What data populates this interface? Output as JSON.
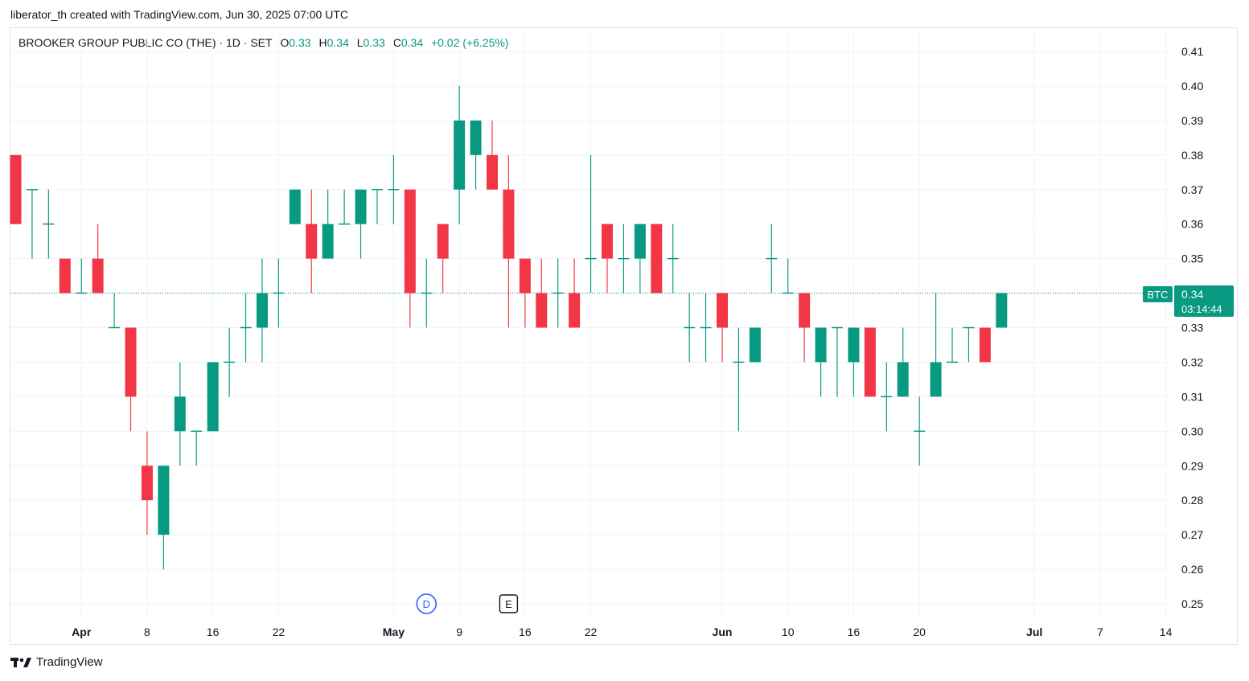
{
  "caption": "liberator_th created with TradingView.com, Jun 30, 2025 07:00 UTC",
  "legend": {
    "symbol": "BROOKER GROUP PUBLIC CO (THE) · 1D · SET",
    "open_label": "O",
    "open": "0.33",
    "high_label": "H",
    "high": "0.34",
    "low_label": "L",
    "low": "0.33",
    "close_label": "C",
    "close": "0.34",
    "change": "+0.02 (+6.25%)"
  },
  "price_tag": {
    "symbol": "BTC",
    "price": "0.34",
    "countdown": "03:14:44"
  },
  "markers": {
    "dividend": "D",
    "earnings": "E"
  },
  "footer": {
    "brand": "TradingView"
  },
  "colors": {
    "up": "#089981",
    "down": "#f23645",
    "grid": "#f0f3fa",
    "text": "#131722",
    "marker_blue": "#2962ff"
  },
  "chart_data": {
    "type": "candlestick",
    "y_ticks": [
      "0.41",
      "0.40",
      "0.39",
      "0.38",
      "0.37",
      "0.36",
      "0.35",
      "0.34",
      "0.33",
      "0.32",
      "0.31",
      "0.30",
      "0.29",
      "0.28",
      "0.27",
      "0.26",
      "0.25"
    ],
    "ylim": [
      0.25,
      0.41
    ],
    "x_ticks": [
      {
        "label": "Apr",
        "index": 4,
        "bold": true
      },
      {
        "label": "8",
        "index": 8
      },
      {
        "label": "16",
        "index": 12
      },
      {
        "label": "22",
        "index": 16
      },
      {
        "label": "May",
        "index": 23,
        "bold": true
      },
      {
        "label": "9",
        "index": 27
      },
      {
        "label": "16",
        "index": 31
      },
      {
        "label": "22",
        "index": 35
      },
      {
        "label": "Jun",
        "index": 43,
        "bold": true
      },
      {
        "label": "10",
        "index": 47
      },
      {
        "label": "16",
        "index": 51
      },
      {
        "label": "20",
        "index": 55
      },
      {
        "label": "Jul",
        "index": 62,
        "bold": true
      },
      {
        "label": "7",
        "index": 66
      },
      {
        "label": "14",
        "index": 70
      }
    ],
    "candles": [
      {
        "o": 0.38,
        "h": 0.38,
        "l": 0.36,
        "c": 0.36
      },
      {
        "o": 0.37,
        "h": 0.37,
        "l": 0.35,
        "c": 0.37
      },
      {
        "o": 0.36,
        "h": 0.37,
        "l": 0.35,
        "c": 0.36
      },
      {
        "o": 0.35,
        "h": 0.35,
        "l": 0.34,
        "c": 0.34
      },
      {
        "o": 0.34,
        "h": 0.35,
        "l": 0.34,
        "c": 0.34
      },
      {
        "o": 0.35,
        "h": 0.36,
        "l": 0.34,
        "c": 0.34
      },
      {
        "o": 0.33,
        "h": 0.34,
        "l": 0.33,
        "c": 0.33
      },
      {
        "o": 0.33,
        "h": 0.33,
        "l": 0.3,
        "c": 0.31
      },
      {
        "o": 0.29,
        "h": 0.3,
        "l": 0.27,
        "c": 0.28
      },
      {
        "o": 0.27,
        "h": 0.29,
        "l": 0.26,
        "c": 0.29
      },
      {
        "o": 0.3,
        "h": 0.32,
        "l": 0.29,
        "c": 0.31
      },
      {
        "o": 0.3,
        "h": 0.3,
        "l": 0.29,
        "c": 0.3
      },
      {
        "o": 0.3,
        "h": 0.32,
        "l": 0.3,
        "c": 0.32
      },
      {
        "o": 0.32,
        "h": 0.33,
        "l": 0.31,
        "c": 0.32
      },
      {
        "o": 0.33,
        "h": 0.34,
        "l": 0.32,
        "c": 0.33
      },
      {
        "o": 0.33,
        "h": 0.35,
        "l": 0.32,
        "c": 0.34
      },
      {
        "o": 0.34,
        "h": 0.35,
        "l": 0.33,
        "c": 0.34
      },
      {
        "o": 0.36,
        "h": 0.37,
        "l": 0.36,
        "c": 0.37
      },
      {
        "o": 0.36,
        "h": 0.37,
        "l": 0.34,
        "c": 0.35
      },
      {
        "o": 0.35,
        "h": 0.37,
        "l": 0.35,
        "c": 0.36
      },
      {
        "o": 0.36,
        "h": 0.37,
        "l": 0.36,
        "c": 0.36
      },
      {
        "o": 0.36,
        "h": 0.37,
        "l": 0.35,
        "c": 0.37
      },
      {
        "o": 0.37,
        "h": 0.37,
        "l": 0.36,
        "c": 0.37
      },
      {
        "o": 0.37,
        "h": 0.38,
        "l": 0.36,
        "c": 0.37
      },
      {
        "o": 0.37,
        "h": 0.37,
        "l": 0.33,
        "c": 0.34
      },
      {
        "o": 0.34,
        "h": 0.35,
        "l": 0.33,
        "c": 0.34
      },
      {
        "o": 0.36,
        "h": 0.36,
        "l": 0.34,
        "c": 0.35
      },
      {
        "o": 0.37,
        "h": 0.4,
        "l": 0.36,
        "c": 0.39
      },
      {
        "o": 0.38,
        "h": 0.39,
        "l": 0.37,
        "c": 0.39
      },
      {
        "o": 0.38,
        "h": 0.39,
        "l": 0.37,
        "c": 0.37
      },
      {
        "o": 0.37,
        "h": 0.38,
        "l": 0.33,
        "c": 0.35
      },
      {
        "o": 0.35,
        "h": 0.35,
        "l": 0.33,
        "c": 0.34
      },
      {
        "o": 0.34,
        "h": 0.35,
        "l": 0.33,
        "c": 0.33
      },
      {
        "o": 0.34,
        "h": 0.35,
        "l": 0.33,
        "c": 0.34
      },
      {
        "o": 0.34,
        "h": 0.35,
        "l": 0.33,
        "c": 0.33
      },
      {
        "o": 0.35,
        "h": 0.38,
        "l": 0.34,
        "c": 0.35
      },
      {
        "o": 0.36,
        "h": 0.36,
        "l": 0.34,
        "c": 0.35
      },
      {
        "o": 0.35,
        "h": 0.36,
        "l": 0.34,
        "c": 0.35
      },
      {
        "o": 0.35,
        "h": 0.36,
        "l": 0.34,
        "c": 0.36
      },
      {
        "o": 0.36,
        "h": 0.36,
        "l": 0.34,
        "c": 0.34
      },
      {
        "o": 0.35,
        "h": 0.36,
        "l": 0.34,
        "c": 0.35
      },
      {
        "o": 0.33,
        "h": 0.34,
        "l": 0.32,
        "c": 0.33
      },
      {
        "o": 0.33,
        "h": 0.34,
        "l": 0.32,
        "c": 0.33
      },
      {
        "o": 0.34,
        "h": 0.34,
        "l": 0.32,
        "c": 0.33
      },
      {
        "o": 0.32,
        "h": 0.33,
        "l": 0.3,
        "c": 0.32
      },
      {
        "o": 0.32,
        "h": 0.33,
        "l": 0.32,
        "c": 0.33
      },
      {
        "o": 0.35,
        "h": 0.36,
        "l": 0.34,
        "c": 0.35
      },
      {
        "o": 0.34,
        "h": 0.35,
        "l": 0.34,
        "c": 0.34
      },
      {
        "o": 0.34,
        "h": 0.34,
        "l": 0.32,
        "c": 0.33
      },
      {
        "o": 0.32,
        "h": 0.33,
        "l": 0.31,
        "c": 0.33
      },
      {
        "o": 0.33,
        "h": 0.33,
        "l": 0.31,
        "c": 0.33
      },
      {
        "o": 0.32,
        "h": 0.33,
        "l": 0.31,
        "c": 0.33
      },
      {
        "o": 0.33,
        "h": 0.33,
        "l": 0.31,
        "c": 0.31
      },
      {
        "o": 0.31,
        "h": 0.32,
        "l": 0.3,
        "c": 0.31
      },
      {
        "o": 0.31,
        "h": 0.33,
        "l": 0.31,
        "c": 0.32
      },
      {
        "o": 0.3,
        "h": 0.31,
        "l": 0.29,
        "c": 0.3
      },
      {
        "o": 0.31,
        "h": 0.34,
        "l": 0.31,
        "c": 0.32
      },
      {
        "o": 0.32,
        "h": 0.33,
        "l": 0.32,
        "c": 0.32
      },
      {
        "o": 0.33,
        "h": 0.33,
        "l": 0.32,
        "c": 0.33
      },
      {
        "o": 0.33,
        "h": 0.33,
        "l": 0.32,
        "c": 0.32
      },
      {
        "o": 0.33,
        "h": 0.34,
        "l": 0.33,
        "c": 0.34
      }
    ],
    "last_price": 0.34,
    "dividend_index": 25,
    "earnings_index": 30
  }
}
